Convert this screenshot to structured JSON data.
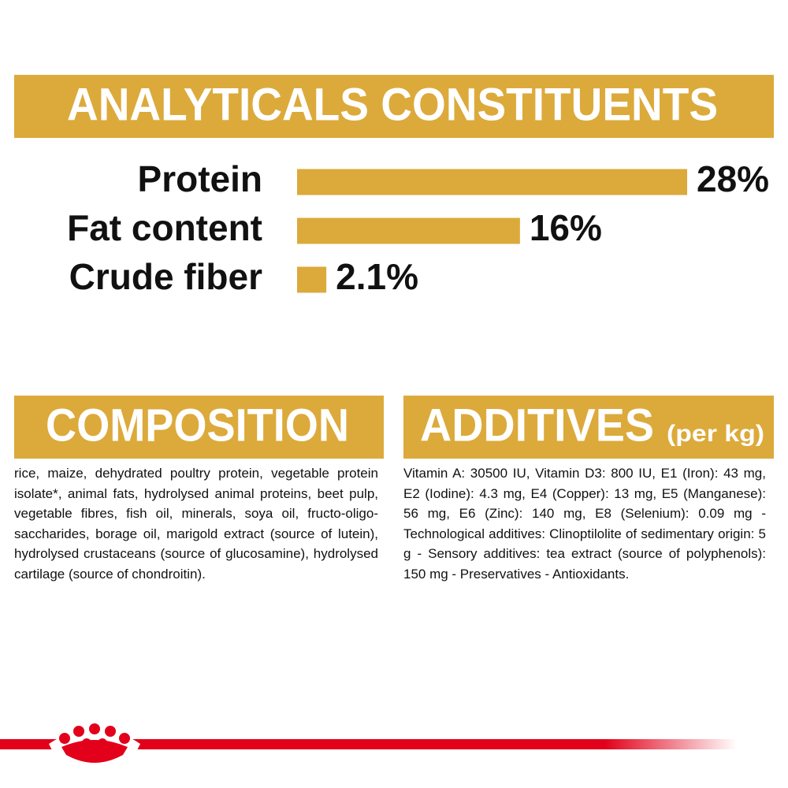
{
  "chart_data": {
    "type": "bar",
    "title": "ANALYTICALS CONSTITUENTS",
    "categories": [
      "Protein",
      "Fat content",
      "Crude fiber"
    ],
    "values": [
      28,
      16,
      2.1
    ],
    "value_labels": [
      "28%",
      "16%",
      "2.1%"
    ],
    "color": "#dcaa3b"
  },
  "composition": {
    "title": "COMPOSITION",
    "text": "rice, maize, dehydrated poultry protein, vegetable protein isolate*, animal fats, hydrolysed animal proteins, beet pulp, vegetable fibres, fish oil, minerals, soya oil, fructo-oligo-saccharides, borage oil, marigold extract (source of lutein), hydrolysed crustaceans (source of glucosamine), hydrolysed cartilage (source of chondroitin)."
  },
  "additives": {
    "title": "ADDITIVES",
    "unit": "(per kg)",
    "text": "Vitamin A: 30500 IU, Vitamin D3: 800 IU, E1 (Iron): 43 mg, E2 (Iodine): 4.3 mg, E4 (Copper): 13 mg, E5 (Manganese): 56 mg, E6 (Zinc): 140 mg, E8 (Selenium): 0.09 mg - Technological additives: Clinoptilolite of sedimentary origin: 5 g - Sensory additives: tea extract (source of polyphenols): 150 mg - Preservatives - Antioxidants."
  }
}
